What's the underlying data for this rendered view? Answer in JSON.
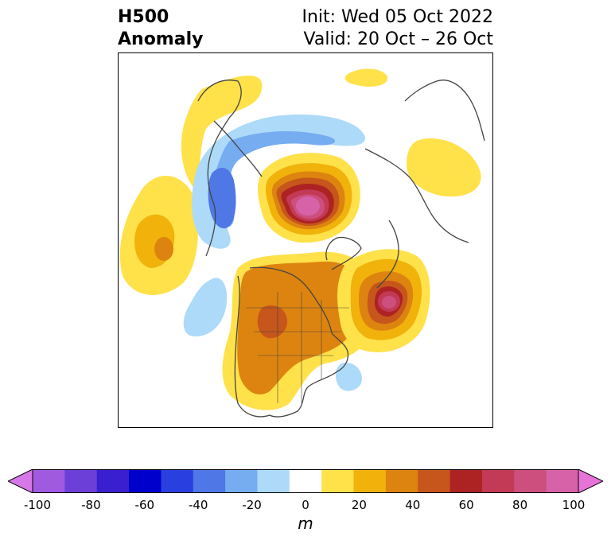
{
  "title": {
    "left_line1": "H500",
    "left_line2": "Anomaly",
    "right_line1": "Init: Wed 05 Oct 2022",
    "right_line2": "Valid: 20 Oct – 26 Oct"
  },
  "colorbar": {
    "unit": "m",
    "ticks": [
      "-100",
      "-80",
      "-60",
      "-40",
      "-20",
      "0",
      "20",
      "40",
      "60",
      "80",
      "100"
    ],
    "colors": [
      "#d778e8",
      "#a05ae0",
      "#6b3fd8",
      "#3a1fd0",
      "#0000cd",
      "#2a3fe0",
      "#4f77e6",
      "#76acf0",
      "#acdaf8",
      "#ffffff",
      "#ffe14a",
      "#f0b20b",
      "#dd8410",
      "#c6561b",
      "#ad2222",
      "#c23a55",
      "#cc4f7e",
      "#d762a8",
      "#e873d8"
    ]
  }
}
